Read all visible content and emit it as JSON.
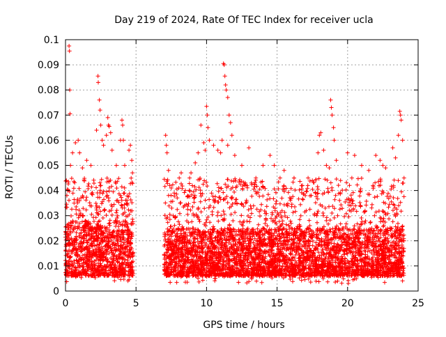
{
  "chart_data": {
    "type": "scatter",
    "title": "Day 219 of 2024, Rate Of TEC Index for receiver ucla",
    "xlabel": "GPS time / hours",
    "ylabel": "ROTI / TECUs",
    "xlim": [
      0,
      25
    ],
    "ylim": [
      0,
      0.1
    ],
    "x_ticks": [
      0,
      5,
      10,
      15,
      20,
      25
    ],
    "x_tick_labels": [
      "0",
      "5",
      "10",
      "15",
      "20",
      "25"
    ],
    "y_ticks": [
      0,
      0.01,
      0.02,
      0.03,
      0.04,
      0.05,
      0.06,
      0.07,
      0.08,
      0.09,
      0.1
    ],
    "y_tick_labels": [
      "0",
      "0.01",
      "0.02",
      "0.03",
      "0.04",
      "0.05",
      "0.06",
      "0.07",
      "0.08",
      "0.09",
      "0.1"
    ],
    "grid": true,
    "marker": "+",
    "marker_color": "#ff0000",
    "series": [
      {
        "name": "ROTI",
        "color": "#ff0000",
        "points": [
          [
            0.25,
            0.0975
          ],
          [
            0.28,
            0.0955
          ],
          [
            0.3,
            0.08
          ],
          [
            0.32,
            0.0705
          ],
          [
            0.1,
            0.038
          ],
          [
            0.35,
            0.05
          ],
          [
            0.5,
            0.055
          ],
          [
            0.7,
            0.059
          ],
          [
            0.9,
            0.06
          ],
          [
            1.0,
            0.055
          ],
          [
            1.2,
            0.049
          ],
          [
            1.5,
            0.052
          ],
          [
            1.8,
            0.05
          ],
          [
            2.3,
            0.0855
          ],
          [
            2.32,
            0.083
          ],
          [
            2.4,
            0.076
          ],
          [
            2.45,
            0.072
          ],
          [
            2.5,
            0.066
          ],
          [
            2.2,
            0.064
          ],
          [
            2.6,
            0.06
          ],
          [
            2.7,
            0.058
          ],
          [
            2.9,
            0.062
          ],
          [
            3.0,
            0.069
          ],
          [
            3.05,
            0.066
          ],
          [
            3.1,
            0.0655
          ],
          [
            3.2,
            0.063
          ],
          [
            3.3,
            0.056
          ],
          [
            3.6,
            0.05
          ],
          [
            3.9,
            0.06
          ],
          [
            4.0,
            0.068
          ],
          [
            4.05,
            0.066
          ],
          [
            4.1,
            0.06
          ],
          [
            4.2,
            0.05
          ],
          [
            4.5,
            0.056
          ],
          [
            4.6,
            0.058
          ],
          [
            4.7,
            0.052
          ],
          [
            4.75,
            0.047
          ],
          [
            7.1,
            0.062
          ],
          [
            7.15,
            0.058
          ],
          [
            7.2,
            0.055
          ],
          [
            7.3,
            0.048
          ],
          [
            7.5,
            0.041
          ],
          [
            8.2,
            0.047
          ],
          [
            8.5,
            0.04
          ],
          [
            8.8,
            0.045
          ],
          [
            8.9,
            0.047
          ],
          [
            9.2,
            0.051
          ],
          [
            9.4,
            0.055
          ],
          [
            9.6,
            0.066
          ],
          [
            9.8,
            0.059
          ],
          [
            9.9,
            0.056
          ],
          [
            10.0,
            0.0735
          ],
          [
            10.05,
            0.07
          ],
          [
            10.1,
            0.065
          ],
          [
            10.2,
            0.06
          ],
          [
            10.5,
            0.058
          ],
          [
            10.8,
            0.056
          ],
          [
            11.0,
            0.055
          ],
          [
            11.1,
            0.06
          ],
          [
            11.2,
            0.0905
          ],
          [
            11.25,
            0.09
          ],
          [
            11.3,
            0.0855
          ],
          [
            11.35,
            0.082
          ],
          [
            11.4,
            0.08
          ],
          [
            11.5,
            0.077
          ],
          [
            11.6,
            0.07
          ],
          [
            11.7,
            0.067
          ],
          [
            11.8,
            0.062
          ],
          [
            11.5,
            0.058
          ],
          [
            12.0,
            0.054
          ],
          [
            12.5,
            0.05
          ],
          [
            13.0,
            0.057
          ],
          [
            13.5,
            0.045
          ],
          [
            14.0,
            0.05
          ],
          [
            14.5,
            0.054
          ],
          [
            14.8,
            0.05
          ],
          [
            15.5,
            0.048
          ],
          [
            16.2,
            0.045
          ],
          [
            16.8,
            0.042
          ],
          [
            17.2,
            0.045
          ],
          [
            17.5,
            0.044
          ],
          [
            17.9,
            0.055
          ],
          [
            18.0,
            0.062
          ],
          [
            18.1,
            0.063
          ],
          [
            18.3,
            0.056
          ],
          [
            18.5,
            0.05
          ],
          [
            18.7,
            0.049
          ],
          [
            18.8,
            0.076
          ],
          [
            18.85,
            0.073
          ],
          [
            18.9,
            0.07
          ],
          [
            19.0,
            0.065
          ],
          [
            19.05,
            0.06
          ],
          [
            19.2,
            0.052
          ],
          [
            19.5,
            0.044
          ],
          [
            20.0,
            0.055
          ],
          [
            20.3,
            0.045
          ],
          [
            20.5,
            0.054
          ],
          [
            21.0,
            0.05
          ],
          [
            21.5,
            0.048
          ],
          [
            21.8,
            0.042
          ],
          [
            22.0,
            0.054
          ],
          [
            22.3,
            0.052
          ],
          [
            22.5,
            0.05
          ],
          [
            22.7,
            0.049
          ],
          [
            23.2,
            0.057
          ],
          [
            23.4,
            0.053
          ],
          [
            23.6,
            0.062
          ],
          [
            23.7,
            0.0715
          ],
          [
            23.75,
            0.07
          ],
          [
            23.8,
            0.068
          ],
          [
            23.9,
            0.06
          ],
          [
            24.0,
            0.045
          ]
        ],
        "dense_band": {
          "segments": [
            {
              "x_range": [
                0.0,
                4.8
              ],
              "typical_range": [
                0.006,
                0.028
              ],
              "upper_scatter": 0.045
            },
            {
              "x_range": [
                7.0,
                24.0
              ],
              "typical_range": [
                0.006,
                0.025
              ],
              "upper_scatter": 0.045
            }
          ],
          "data_gap_hours": [
            4.8,
            7.0
          ],
          "min_value": 0.003
        }
      }
    ]
  }
}
